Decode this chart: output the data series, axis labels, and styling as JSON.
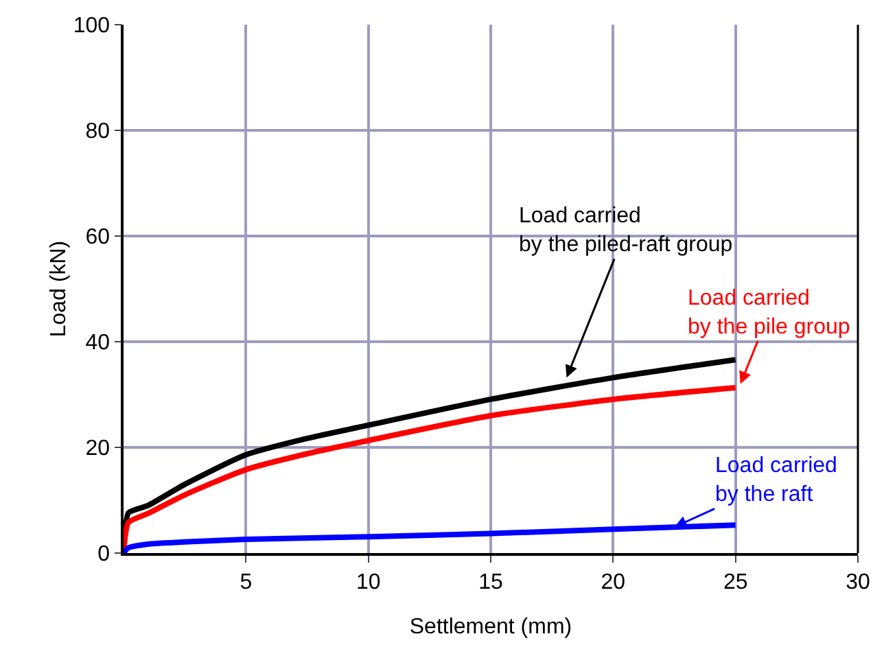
{
  "chart_data": {
    "type": "line",
    "xlabel": "Settlement (mm)",
    "ylabel": "Load (kN)",
    "xlim": [
      0,
      30
    ],
    "xticks": [
      5,
      10,
      15,
      20,
      25,
      30
    ],
    "ylim": [
      0,
      100
    ],
    "yticks": [
      0,
      20,
      40,
      60,
      80,
      100
    ],
    "grid": true,
    "legend": false,
    "marker": "none",
    "line_style": "solid",
    "series": [
      {
        "color": "#000000",
        "x": [
          0,
          0.05,
          0.2,
          1,
          2.5,
          5,
          7.5,
          10,
          15,
          20,
          25
        ],
        "values": [
          0,
          3,
          7.6,
          9,
          13,
          18.6,
          21.7,
          24.2,
          29.1,
          33.2,
          36.6
        ]
      },
      {
        "color": "#ff0000",
        "x": [
          0,
          0.05,
          0.2,
          1,
          2.5,
          5,
          7.5,
          10,
          15,
          20,
          25
        ],
        "values": [
          0,
          2.5,
          5.8,
          7.5,
          11,
          15.8,
          18.8,
          21.3,
          26,
          29.1,
          31.3
        ]
      },
      {
        "color": "#0000ff",
        "x": [
          0,
          0.2,
          1,
          2.5,
          5,
          10,
          15,
          20,
          25
        ],
        "values": [
          0,
          1,
          1.7,
          2.1,
          2.6,
          3.1,
          3.7,
          4.5,
          5.3
        ]
      }
    ],
    "annotations": [
      {
        "text": "Load carried\nby the piled-raft group",
        "x": 18.1,
        "y": 33.2
      },
      {
        "text": "Load carried\nby the pile group",
        "x": 25.2,
        "y": 32
      },
      {
        "text": "Load carried\nby the raft",
        "x": 22.5,
        "y": 4.9
      }
    ]
  }
}
